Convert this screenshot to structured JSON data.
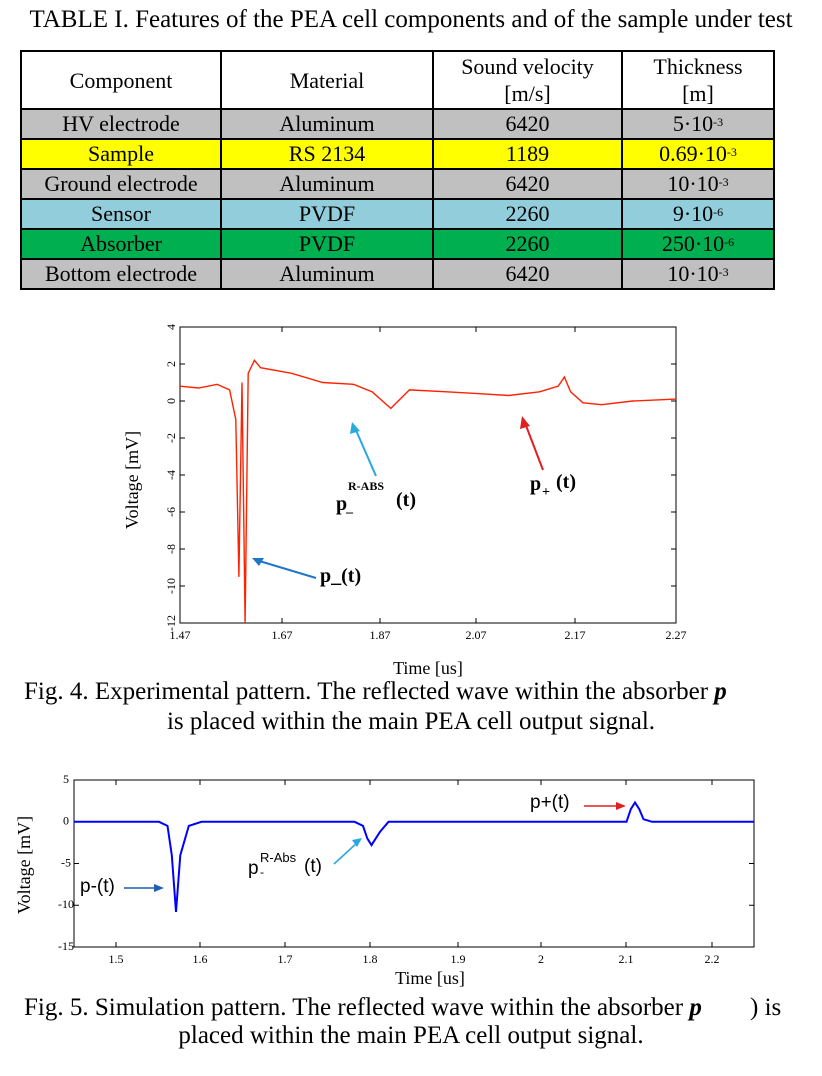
{
  "table": {
    "caption": "TABLE I. Features of the PEA cell components and of the sample under test",
    "headers": {
      "component": "Component",
      "material": "Material",
      "velocity_line1": "Sound velocity",
      "velocity_line2": "[m/s]",
      "thickness_line1": "Thickness",
      "thickness_line2": "[m]"
    },
    "rows": [
      {
        "component": "HV electrode",
        "material": "Aluminum",
        "velocity": "6420",
        "thickness_base": "5·10",
        "thickness_exp": "-3",
        "color": "#c0c0c0"
      },
      {
        "component": "Sample",
        "material": "RS 2134",
        "velocity": "1189",
        "thickness_base": "0.69·10",
        "thickness_exp": "-3",
        "color": "#ffff00"
      },
      {
        "component": "Ground electrode",
        "material": "Aluminum",
        "velocity": "6420",
        "thickness_base": "10·10",
        "thickness_exp": "-3",
        "color": "#c0c0c0"
      },
      {
        "component": "Sensor",
        "material": "PVDF",
        "velocity": "2260",
        "thickness_base": "9·10",
        "thickness_exp": "-6",
        "color": "#92cddc"
      },
      {
        "component": "Absorber",
        "material": "PVDF",
        "velocity": "2260",
        "thickness_base": "250·10",
        "thickness_exp": "-6",
        "color": "#00b050"
      },
      {
        "component": "Bottom electrode",
        "material": "Aluminum",
        "velocity": "6420",
        "thickness_base": "10·10",
        "thickness_exp": "-3",
        "color": "#c0c0c0"
      }
    ]
  },
  "fig4": {
    "caption_line1": "Fig. 4. Experimental pattern. The reflected wave within the absorber",
    "caption_p": "p",
    "caption_line2": "is placed within the main PEA cell output signal.",
    "ann_pminus": "p_(t)",
    "ann_rabs_p": "p",
    "ann_rabs_sup": "R-ABS",
    "ann_rabs_sub": "–",
    "ann_rabs_t": "(t)",
    "ann_pplus_p": "p",
    "ann_pplus_sub": "+",
    "ann_pplus_t": "(t)",
    "line_color": "#ff2200"
  },
  "fig5": {
    "caption_line1": "Fig. 5. Simulation pattern. The reflected wave within the absorber",
    "caption_p": "p",
    "caption_end": ") is",
    "caption_line2": "placed within the main PEA cell output signal.",
    "ann_pminus": "p-(t)",
    "ann_rabs_p": "p",
    "ann_rabs_sup": "R-Abs",
    "ann_rabs_sub": "-",
    "ann_rabs_t": "(t)",
    "ann_pplus": "p+(t)",
    "line_color": "#0000ff"
  },
  "chart_data": [
    {
      "type": "line",
      "xlabel": "Time [us]",
      "ylabel": "Voltage [mV]",
      "xlim": [
        1.47,
        2.27
      ],
      "ylim": [
        -12,
        4
      ],
      "x_ticks": [
        "1.47",
        "1.67",
        "1.87",
        "2.07",
        "2.17",
        "2.27"
      ],
      "y_ticks": [
        "4",
        "2",
        "0",
        "-2",
        "-4",
        "-6",
        "-8",
        "-10",
        "-12"
      ],
      "grid": false,
      "series": [
        {
          "x": [
            1.47,
            1.5,
            1.53,
            1.55,
            1.56,
            1.565,
            1.57,
            1.575,
            1.58,
            1.59,
            1.6,
            1.65,
            1.7,
            1.75,
            1.78,
            1.81,
            1.84,
            1.9,
            1.95,
            2.0,
            2.05,
            2.08,
            2.09,
            2.1,
            2.12,
            2.15,
            2.2,
            2.27
          ],
          "y": [
            0.8,
            0.7,
            0.9,
            0.6,
            -1.0,
            -9.5,
            1.0,
            -12.0,
            1.5,
            2.2,
            1.8,
            1.5,
            1.0,
            0.9,
            0.5,
            -0.4,
            0.6,
            0.5,
            0.4,
            0.3,
            0.5,
            0.8,
            1.3,
            0.5,
            -0.1,
            -0.2,
            0.0,
            0.1
          ]
        }
      ]
    },
    {
      "type": "line",
      "xlabel": "Time [us]",
      "ylabel": "Voltage [mV]",
      "xlim": [
        1.45,
        2.25
      ],
      "ylim": [
        -15,
        5
      ],
      "x_ticks": [
        "1.5",
        "1.6",
        "1.7",
        "1.8",
        "1.9",
        "2",
        "2.1",
        "2.2"
      ],
      "y_ticks": [
        "5",
        "0",
        "-5",
        "-10",
        "-15"
      ],
      "grid": false,
      "series": [
        {
          "x": [
            1.45,
            1.55,
            1.56,
            1.565,
            1.57,
            1.575,
            1.585,
            1.6,
            1.7,
            1.78,
            1.79,
            1.795,
            1.8,
            1.81,
            1.82,
            1.9,
            2.0,
            2.1,
            2.105,
            2.11,
            2.115,
            2.12,
            2.13,
            2.25
          ],
          "y": [
            0.0,
            0.0,
            -0.5,
            -4.0,
            -10.8,
            -4.0,
            -0.5,
            0.0,
            0.0,
            0.0,
            -0.5,
            -2.0,
            -2.8,
            -1.2,
            0.0,
            0.0,
            0.0,
            0.0,
            1.5,
            2.3,
            1.5,
            0.3,
            0.0,
            0.0
          ]
        }
      ]
    }
  ]
}
